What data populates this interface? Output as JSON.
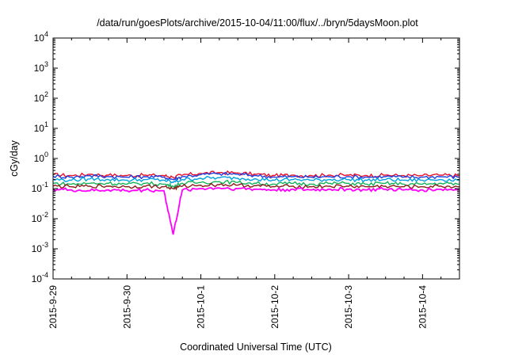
{
  "chart_data": {
    "type": "line",
    "title": "/data/run/goesPlots/archive/2015-10-04/11:00/flux/../bryn/5daysMoon.plot",
    "xlabel": "Coordinated Universal Time (UTC)",
    "ylabel": "cGy/day",
    "yscale": "log",
    "ylim": [
      0.0001,
      10000
    ],
    "y_ticks": [
      {
        "value": 0.0001,
        "base": "10",
        "exp": "-4"
      },
      {
        "value": 0.001,
        "base": "10",
        "exp": "-3"
      },
      {
        "value": 0.01,
        "base": "10",
        "exp": "-2"
      },
      {
        "value": 0.1,
        "base": "10",
        "exp": "-1"
      },
      {
        "value": 1,
        "base": "10",
        "exp": "0"
      },
      {
        "value": 10,
        "base": "10",
        "exp": "1"
      },
      {
        "value": 100,
        "base": "10",
        "exp": "2"
      },
      {
        "value": 1000,
        "base": "10",
        "exp": "3"
      },
      {
        "value": 10000,
        "base": "10",
        "exp": "4"
      }
    ],
    "xlim": [
      "2015-09-29",
      "2015-10-04 12:00"
    ],
    "x_ticks": [
      "2015-9-29",
      "2015-9-30",
      "2015-10-1",
      "2015-10-2",
      "2015-10-3",
      "2015-10-4"
    ],
    "grid": false,
    "legend": false,
    "x": [
      "2015-09-29 00:00",
      "2015-09-29 06:00",
      "2015-09-29 12:00",
      "2015-09-29 18:00",
      "2015-09-30 00:00",
      "2015-09-30 06:00",
      "2015-09-30 12:00",
      "2015-09-30 15:00",
      "2015-09-30 18:00",
      "2015-10-01 00:00",
      "2015-10-01 06:00",
      "2015-10-01 12:00",
      "2015-10-01 18:00",
      "2015-10-02 00:00",
      "2015-10-02 06:00",
      "2015-10-02 12:00",
      "2015-10-02 18:00",
      "2015-10-03 00:00",
      "2015-10-03 06:00",
      "2015-10-03 12:00",
      "2015-10-03 18:00",
      "2015-10-04 00:00",
      "2015-10-04 06:00",
      "2015-10-04 12:00"
    ],
    "series": [
      {
        "color": "#e8112d",
        "values": [
          0.29,
          0.27,
          0.3,
          0.28,
          0.27,
          0.28,
          0.27,
          0.24,
          0.28,
          0.32,
          0.34,
          0.33,
          0.3,
          0.27,
          0.28,
          0.27,
          0.28,
          0.28,
          0.27,
          0.28,
          0.27,
          0.27,
          0.28,
          0.27
        ]
      },
      {
        "color": "#1f3fe0",
        "values": [
          0.26,
          0.24,
          0.27,
          0.25,
          0.24,
          0.25,
          0.24,
          0.2,
          0.25,
          0.29,
          0.31,
          0.3,
          0.27,
          0.24,
          0.25,
          0.24,
          0.25,
          0.25,
          0.24,
          0.25,
          0.24,
          0.24,
          0.25,
          0.24
        ]
      },
      {
        "color": "#00a0e0",
        "values": [
          0.2,
          0.19,
          0.21,
          0.2,
          0.19,
          0.2,
          0.19,
          0.16,
          0.2,
          0.22,
          0.23,
          0.22,
          0.21,
          0.19,
          0.2,
          0.19,
          0.2,
          0.2,
          0.19,
          0.2,
          0.19,
          0.19,
          0.2,
          0.19
        ]
      },
      {
        "color": "#12b35a",
        "values": [
          0.15,
          0.14,
          0.15,
          0.15,
          0.14,
          0.15,
          0.14,
          0.12,
          0.15,
          0.16,
          0.17,
          0.16,
          0.15,
          0.14,
          0.15,
          0.14,
          0.15,
          0.15,
          0.14,
          0.15,
          0.14,
          0.14,
          0.15,
          0.14
        ]
      },
      {
        "color": "#8b1a1a",
        "values": [
          0.12,
          0.115,
          0.12,
          0.12,
          0.115,
          0.12,
          0.115,
          0.1,
          0.12,
          0.13,
          0.135,
          0.13,
          0.125,
          0.115,
          0.12,
          0.115,
          0.12,
          0.12,
          0.115,
          0.12,
          0.115,
          0.115,
          0.12,
          0.115
        ]
      },
      {
        "color": "#ff00ff",
        "values": [
          0.095,
          0.09,
          0.085,
          0.09,
          0.085,
          0.09,
          0.085,
          0.003,
          0.09,
          0.1,
          0.105,
          0.1,
          0.095,
          0.09,
          0.095,
          0.09,
          0.095,
          0.095,
          0.09,
          0.095,
          0.09,
          0.09,
          0.095,
          0.09
        ]
      }
    ]
  }
}
